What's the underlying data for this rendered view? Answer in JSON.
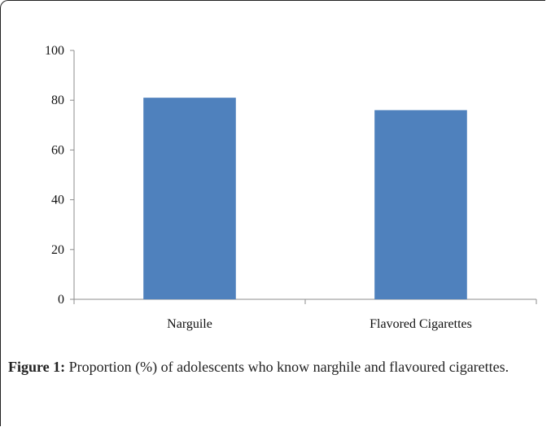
{
  "figure": {
    "caption_label": "Figure 1:",
    "caption_text": "Proportion (%) of adolescents who know narghile and flavoured cigarettes."
  },
  "chart_data": {
    "type": "bar",
    "categories": [
      "Narguile",
      "Flavored Cigarettes"
    ],
    "values": [
      81,
      76
    ],
    "ylim": [
      0,
      100
    ],
    "yticks": [
      0,
      20,
      40,
      60,
      80,
      100
    ],
    "bar_color": "#4f81bd",
    "grid": false,
    "legend": "none"
  }
}
